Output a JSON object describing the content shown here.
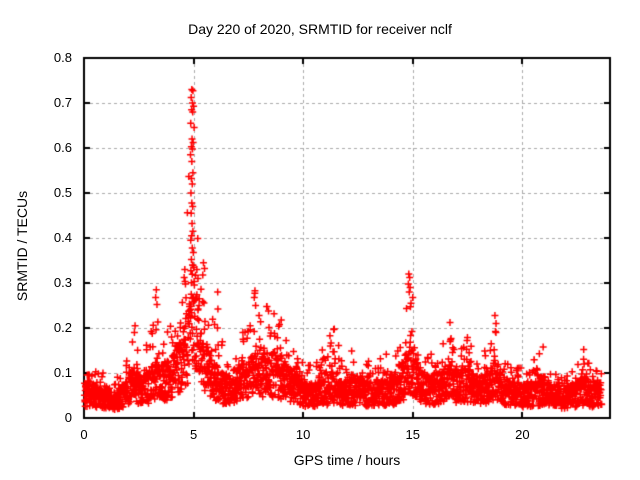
{
  "chart_data": {
    "type": "scatter",
    "title": "Day 220 of 2020, SRMTID for receiver nclf",
    "xlabel": "GPS time / hours",
    "ylabel": "SRMTID / TECUs",
    "series_name": "SRMTID",
    "marker": "+",
    "marker_color": "#ff0000",
    "grid": "dashed",
    "grid_color": "#aaaaaa",
    "border_color": "#000000",
    "legend": "none",
    "xlim": [
      0,
      24
    ],
    "ylim": [
      0,
      0.8
    ],
    "xticks": [
      0,
      5,
      10,
      15,
      20
    ],
    "yticks": [
      0,
      0.1,
      0.2,
      0.3,
      0.4,
      0.5,
      0.6,
      0.7,
      0.8
    ],
    "peak": {
      "hour": 4.95,
      "value": 0.735
    },
    "data_start_hour": 0.02,
    "data_end_hour": 23.62,
    "sample_count": 2800,
    "seed": 42,
    "envelope_note": "triples of [hour, typical_value, max_value] read from the plot",
    "envelope": [
      [
        0.0,
        0.06,
        0.125
      ],
      [
        0.4,
        0.058,
        0.11
      ],
      [
        0.9,
        0.048,
        0.1
      ],
      [
        1.4,
        0.042,
        0.085
      ],
      [
        1.8,
        0.055,
        0.11
      ],
      [
        2.1,
        0.075,
        0.16
      ],
      [
        2.35,
        0.085,
        0.205
      ],
      [
        2.6,
        0.065,
        0.13
      ],
      [
        2.9,
        0.075,
        0.18
      ],
      [
        3.3,
        0.095,
        0.285
      ],
      [
        3.6,
        0.085,
        0.21
      ],
      [
        4.0,
        0.1,
        0.21
      ],
      [
        4.3,
        0.115,
        0.25
      ],
      [
        4.6,
        0.15,
        0.33
      ],
      [
        4.8,
        0.2,
        0.56
      ],
      [
        4.95,
        0.26,
        0.735
      ],
      [
        5.1,
        0.23,
        0.65
      ],
      [
        5.25,
        0.16,
        0.36
      ],
      [
        5.5,
        0.13,
        0.35
      ],
      [
        5.8,
        0.1,
        0.24
      ],
      [
        6.1,
        0.085,
        0.26
      ],
      [
        6.4,
        0.072,
        0.15
      ],
      [
        6.7,
        0.07,
        0.145
      ],
      [
        7.0,
        0.08,
        0.17
      ],
      [
        7.5,
        0.095,
        0.22
      ],
      [
        7.8,
        0.11,
        0.285
      ],
      [
        8.2,
        0.105,
        0.255
      ],
      [
        8.6,
        0.11,
        0.245
      ],
      [
        9.0,
        0.1,
        0.22
      ],
      [
        9.4,
        0.08,
        0.16
      ],
      [
        10.0,
        0.06,
        0.125
      ],
      [
        10.5,
        0.058,
        0.115
      ],
      [
        11.0,
        0.065,
        0.17
      ],
      [
        11.4,
        0.078,
        0.2
      ],
      [
        11.8,
        0.06,
        0.13
      ],
      [
        12.3,
        0.062,
        0.155
      ],
      [
        12.7,
        0.065,
        0.15
      ],
      [
        13.2,
        0.058,
        0.125
      ],
      [
        13.5,
        0.068,
        0.17
      ],
      [
        14.0,
        0.062,
        0.14
      ],
      [
        14.5,
        0.085,
        0.2
      ],
      [
        14.85,
        0.125,
        0.32
      ],
      [
        15.05,
        0.11,
        0.27
      ],
      [
        15.35,
        0.075,
        0.155
      ],
      [
        15.8,
        0.068,
        0.14
      ],
      [
        16.2,
        0.075,
        0.16
      ],
      [
        16.7,
        0.088,
        0.215
      ],
      [
        17.1,
        0.075,
        0.17
      ],
      [
        17.5,
        0.085,
        0.19
      ],
      [
        18.0,
        0.068,
        0.14
      ],
      [
        18.4,
        0.075,
        0.165
      ],
      [
        18.75,
        0.095,
        0.23
      ],
      [
        19.1,
        0.068,
        0.14
      ],
      [
        19.6,
        0.058,
        0.115
      ],
      [
        20.1,
        0.055,
        0.11
      ],
      [
        20.6,
        0.062,
        0.135
      ],
      [
        20.95,
        0.068,
        0.16
      ],
      [
        21.4,
        0.055,
        0.11
      ],
      [
        21.9,
        0.05,
        0.1
      ],
      [
        22.4,
        0.055,
        0.115
      ],
      [
        22.8,
        0.068,
        0.155
      ],
      [
        23.2,
        0.052,
        0.11
      ],
      [
        23.62,
        0.058,
        0.12
      ]
    ],
    "notable_points": [
      [
        4.92,
        0.73
      ],
      [
        4.97,
        0.727
      ],
      [
        4.89,
        0.712
      ],
      [
        4.95,
        0.7
      ],
      [
        5.0,
        0.693
      ],
      [
        4.91,
        0.685
      ],
      [
        4.96,
        0.68
      ],
      [
        4.87,
        0.655
      ],
      [
        4.93,
        0.62
      ],
      [
        4.98,
        0.612
      ],
      [
        4.9,
        0.603
      ],
      [
        4.95,
        0.598
      ],
      [
        4.86,
        0.585
      ],
      [
        4.92,
        0.57
      ],
      [
        4.97,
        0.545
      ],
      [
        4.9,
        0.532
      ],
      [
        4.94,
        0.52
      ],
      [
        4.88,
        0.5
      ],
      [
        4.92,
        0.478
      ],
      [
        4.96,
        0.47
      ],
      [
        4.89,
        0.455
      ],
      [
        4.93,
        0.432
      ],
      [
        4.97,
        0.415
      ],
      [
        4.91,
        0.405
      ],
      [
        4.87,
        0.395
      ],
      [
        4.94,
        0.378
      ],
      [
        4.99,
        0.368
      ],
      [
        4.9,
        0.352
      ],
      [
        4.95,
        0.34
      ],
      [
        5.15,
        0.33
      ],
      [
        5.2,
        0.31
      ],
      [
        4.6,
        0.33
      ],
      [
        4.57,
        0.312
      ],
      [
        4.63,
        0.298
      ],
      [
        5.45,
        0.345
      ],
      [
        5.5,
        0.332
      ],
      [
        5.42,
        0.318
      ],
      [
        3.3,
        0.285
      ],
      [
        3.27,
        0.268
      ],
      [
        3.33,
        0.252
      ],
      [
        6.1,
        0.28
      ],
      [
        6.11,
        0.242
      ],
      [
        6.09,
        0.2
      ],
      [
        6.12,
        0.162
      ],
      [
        7.25,
        0.19
      ],
      [
        7.28,
        0.17
      ],
      [
        7.8,
        0.283
      ],
      [
        7.77,
        0.268
      ],
      [
        7.83,
        0.25
      ],
      [
        14.82,
        0.32
      ],
      [
        14.86,
        0.312
      ],
      [
        14.8,
        0.298
      ],
      [
        14.88,
        0.29
      ],
      [
        14.84,
        0.28
      ],
      [
        15.0,
        0.268
      ],
      [
        14.92,
        0.255
      ],
      [
        8.35,
        0.248
      ],
      [
        8.42,
        0.238
      ],
      [
        9.0,
        0.218
      ],
      [
        8.92,
        0.208
      ],
      [
        11.42,
        0.198
      ],
      [
        16.7,
        0.212
      ],
      [
        18.75,
        0.228
      ],
      [
        18.8,
        0.21
      ],
      [
        2.33,
        0.205
      ],
      [
        2.3,
        0.19
      ],
      [
        20.95,
        0.158
      ],
      [
        22.8,
        0.152
      ]
    ]
  }
}
